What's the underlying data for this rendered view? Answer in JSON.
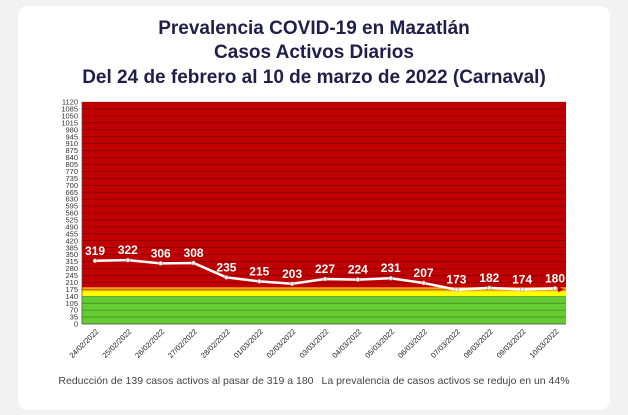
{
  "titles": {
    "line1": "Prevalencia COVID-19 en Mazatlán",
    "line2": "Casos Activos Diarios",
    "line3": "Del 24 de febrero al 10 de marzo de 2022 (Carnaval)"
  },
  "footer": {
    "left": "Reducción de 139 casos activos al pasar de 319 a 180",
    "right": "La prevalencia de casos activos se redujo en un 44%"
  },
  "colors": {
    "red_zone": "#c00000",
    "orange_zone": "#ffa500",
    "yellow_zone": "#ffff00",
    "green_zone": "#66cc33",
    "line": "#ffffff",
    "label": "#ffffff"
  },
  "chart_data": {
    "type": "line",
    "title": "Prevalencia COVID-19 en Mazatlán",
    "subtitle": "Casos Activos Diarios — Del 24 de febrero al 10 de marzo de 2022 (Carnaval)",
    "xlabel": "",
    "ylabel": "",
    "ylim": [
      0,
      1120
    ],
    "ystep": 35,
    "grid": true,
    "categories": [
      "24/02/2022",
      "25/02/2022",
      "26/02/2022",
      "27/02/2022",
      "28/02/2022",
      "01/03/2022",
      "02/03/2022",
      "03/03/2022",
      "04/03/2022",
      "05/03/2022",
      "06/03/2022",
      "07/03/2022",
      "08/03/2022",
      "09/03/2022",
      "10/03/2022"
    ],
    "series": [
      {
        "values": [
          319,
          322,
          306,
          308,
          235,
          215,
          203,
          227,
          224,
          231,
          207,
          173,
          182,
          174,
          180
        ]
      }
    ],
    "zones": [
      {
        "from": 0,
        "to": 140,
        "color": "green"
      },
      {
        "from": 140,
        "to": 165,
        "color": "yellow"
      },
      {
        "from": 165,
        "to": 185,
        "color": "orange"
      },
      {
        "from": 185,
        "to": 1120,
        "color": "red"
      }
    ]
  }
}
